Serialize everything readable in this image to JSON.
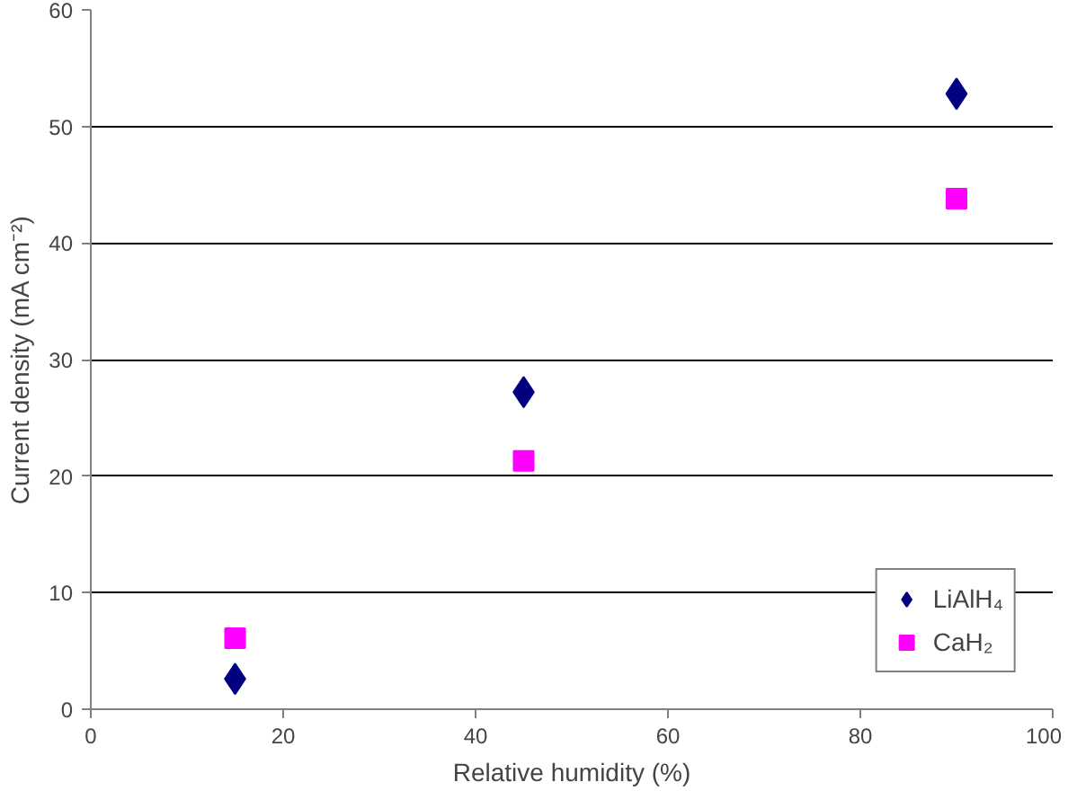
{
  "chart_data": {
    "type": "scatter",
    "xlabel": "Relative humidity (%)",
    "ylabel": "Current density (mA cm⁻²)",
    "xlim": [
      0,
      100
    ],
    "xticks": [
      0,
      20,
      40,
      60,
      80,
      100
    ],
    "ylim": [
      0,
      60
    ],
    "yticks": [
      0,
      10,
      20,
      30,
      40,
      50,
      60
    ],
    "grid": "y",
    "legend": "bottom right",
    "series": [
      {
        "name": "LiAlH₄",
        "color": "#000080",
        "marker": "diamond",
        "x": [
          15,
          45,
          90
        ],
        "values": [
          2.6,
          27.2,
          52.8
        ]
      },
      {
        "name": "CaH₂",
        "color": "#ff00ff",
        "marker": "square",
        "x": [
          15,
          45,
          90
        ],
        "values": [
          6.1,
          21.3,
          43.8
        ]
      }
    ]
  }
}
